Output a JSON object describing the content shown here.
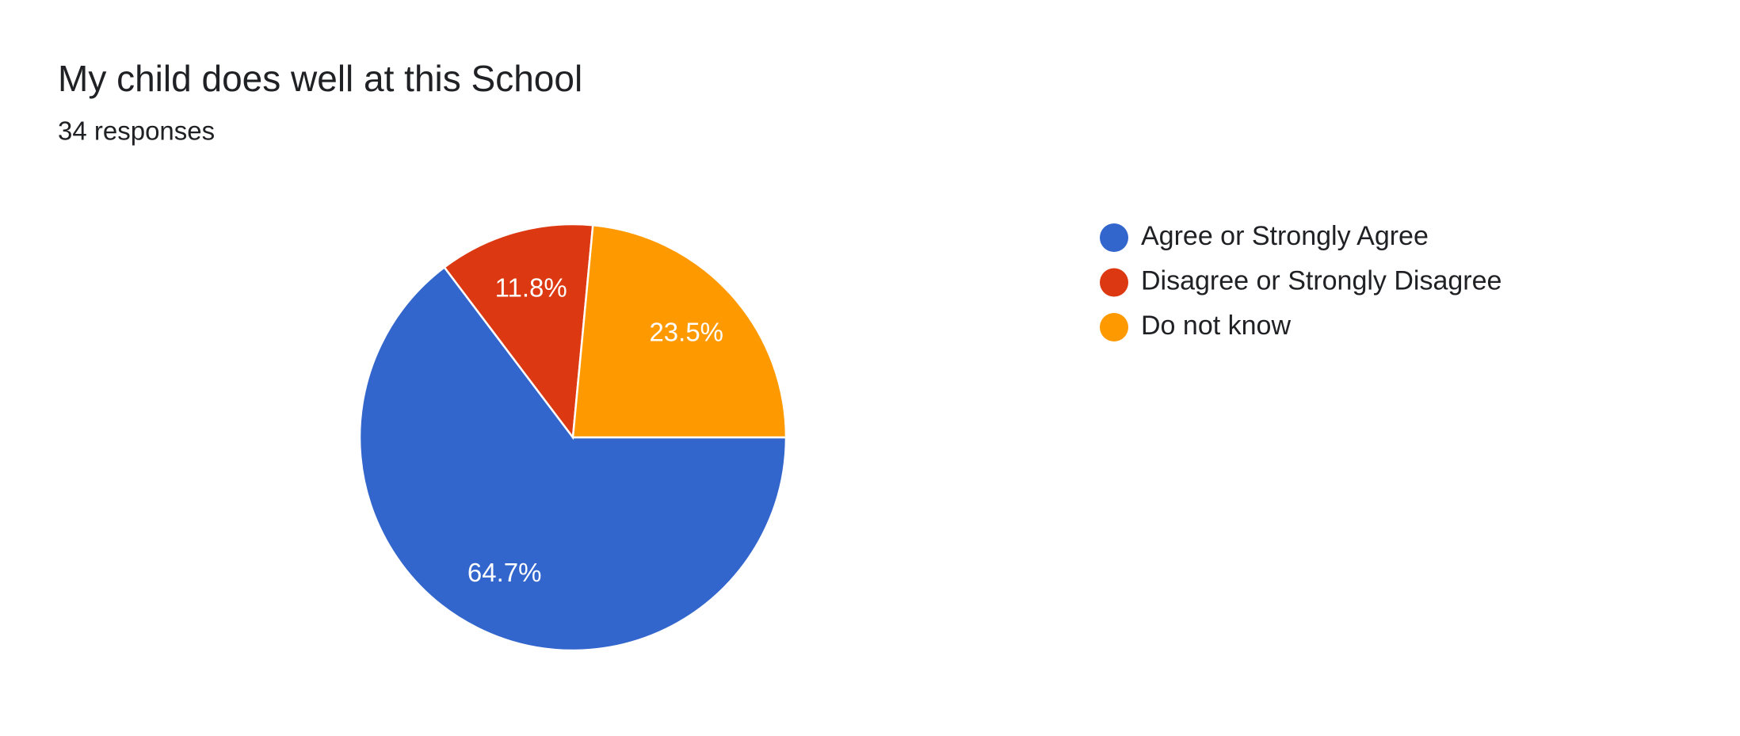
{
  "chart_data": {
    "type": "pie",
    "title": "My child does well at this School",
    "subtitle": "34 responses",
    "categories": [
      "Agree or Strongly Agree",
      "Disagree or Strongly Disagree",
      "Do not know"
    ],
    "values": [
      64.7,
      11.8,
      23.5
    ],
    "value_labels": [
      "64.7%",
      "11.8%",
      "23.5%"
    ],
    "colors": [
      "#3366cc",
      "#dc3912",
      "#ff9900"
    ],
    "legend": "right"
  }
}
